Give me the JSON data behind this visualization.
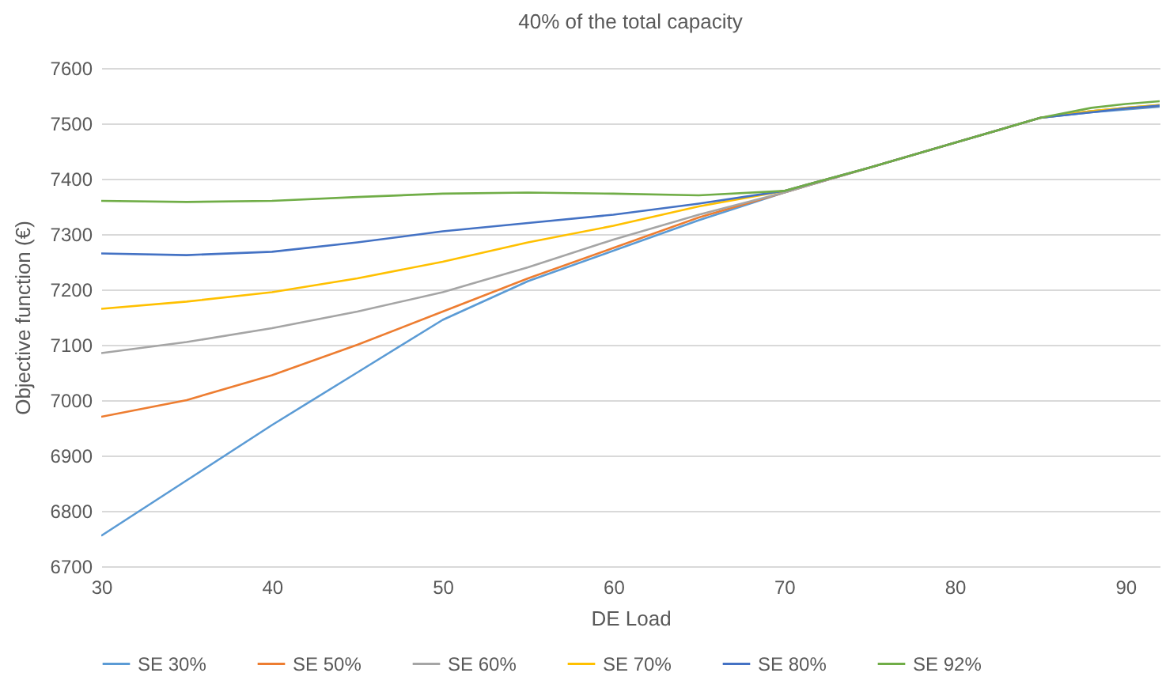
{
  "chart_data": {
    "type": "line",
    "title": "40% of the total capacity",
    "xlabel": "DE Load",
    "ylabel": "Objective  function (€)",
    "x": [
      30,
      35,
      40,
      45,
      50,
      55,
      60,
      65,
      70,
      75,
      80,
      85,
      88,
      90,
      92
    ],
    "series": [
      {
        "name": "SE 30%",
        "color": "#5b9bd5",
        "values": [
          6755,
          6855,
          6955,
          7050,
          7145,
          7215,
          7270,
          7325,
          7375,
          7420,
          7465,
          7510,
          7520,
          7525,
          7530
        ]
      },
      {
        "name": "SE 50%",
        "color": "#ed7d31",
        "values": [
          6970,
          7000,
          7045,
          7100,
          7160,
          7220,
          7275,
          7330,
          7375,
          7420,
          7465,
          7510,
          7522,
          7527,
          7532
        ]
      },
      {
        "name": "SE 60%",
        "color": "#a5a5a5",
        "values": [
          7085,
          7105,
          7130,
          7160,
          7195,
          7240,
          7290,
          7335,
          7375,
          7420,
          7465,
          7510,
          7522,
          7528,
          7533
        ]
      },
      {
        "name": "SE 70%",
        "color": "#ffc000",
        "values": [
          7165,
          7178,
          7195,
          7220,
          7250,
          7285,
          7315,
          7350,
          7378,
          7420,
          7465,
          7510,
          7522,
          7528,
          7533
        ]
      },
      {
        "name": "SE 80%",
        "color": "#4472c4",
        "values": [
          7265,
          7262,
          7268,
          7285,
          7305,
          7320,
          7335,
          7355,
          7378,
          7420,
          7465,
          7510,
          7520,
          7527,
          7532
        ]
      },
      {
        "name": "SE 92%",
        "color": "#70ad47",
        "values": [
          7360,
          7358,
          7360,
          7367,
          7373,
          7375,
          7373,
          7370,
          7378,
          7420,
          7465,
          7510,
          7528,
          7535,
          7540
        ]
      }
    ],
    "xlim": [
      30,
      92
    ],
    "xticks": [
      30,
      40,
      50,
      60,
      70,
      80,
      90
    ],
    "ylim": [
      6700,
      7600
    ],
    "yticks": [
      6700,
      6800,
      6900,
      7000,
      7100,
      7200,
      7300,
      7400,
      7500,
      7600
    ],
    "grid": "y",
    "legend": "bottom",
    "marker": "none",
    "line_style": "solid"
  }
}
